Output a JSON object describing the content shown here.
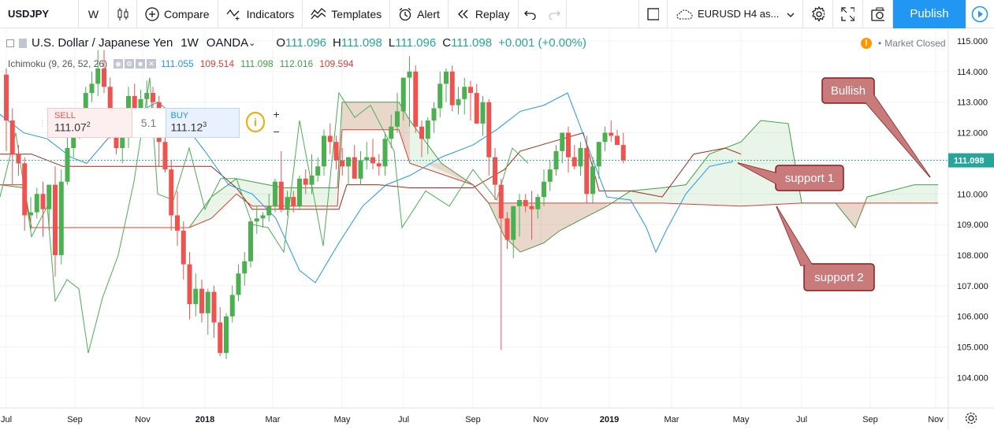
{
  "toolbar": {
    "symbol": "USDJPY",
    "interval": "W",
    "compare": "Compare",
    "indicators": "Indicators",
    "templates": "Templates",
    "alert": "Alert",
    "replay": "Replay",
    "layout_name": "EURUSD H4 as...",
    "publish": "Publish"
  },
  "legend": {
    "title": "U.S. Dollar / Japanese Yen",
    "interval": "1W",
    "source": "OANDA",
    "o_label": "O",
    "o_value": "111.096",
    "h_label": "H",
    "h_value": "111.098",
    "l_label": "L",
    "l_value": "111.096",
    "c_label": "C",
    "c_value": "111.098",
    "change": "+0.001 (+0.00%)"
  },
  "indicator": {
    "name": "Ichimoku (9, 26, 52, 26)",
    "v1": "111.055",
    "v2": "109.514",
    "v3": "111.098",
    "v4": "112.016",
    "v5": "109.594",
    "c1": "#2196f3",
    "c2": "#e53935",
    "c3": "#43a047",
    "c4": "#43a047",
    "c5": "#e53935"
  },
  "trade": {
    "sell_label": "SELL",
    "sell_price": "111.07",
    "sell_sup": "2",
    "spread": "5.1",
    "buy_label": "BUY",
    "buy_price": "111.12",
    "buy_sup": "3"
  },
  "market_status": "Market Closed",
  "current_price": "111.098",
  "annotations": {
    "bullish": "Bullish",
    "support1": "support 1",
    "support2": "support 2"
  },
  "price_axis": [
    "115.000",
    "114.000",
    "113.000",
    "112.000",
    "111.000",
    "110.000",
    "109.000",
    "108.000",
    "107.000",
    "106.000",
    "105.000",
    "104.000"
  ],
  "time_axis": [
    "Jul",
    "Sep",
    "Nov",
    "2018",
    "Mar",
    "May",
    "Jul",
    "Sep",
    "Nov",
    "2019",
    "Mar",
    "May",
    "Jul",
    "Sep",
    "Nov"
  ],
  "colors": {
    "up": "#4caf50",
    "down": "#ef5350",
    "accent": "#2196f3"
  }
}
